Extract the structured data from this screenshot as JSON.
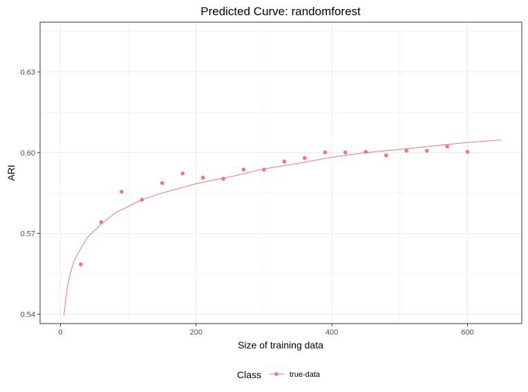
{
  "chart_data": {
    "type": "scatter",
    "title": "Predicted Curve: randomforest",
    "xlabel": "Size of training data",
    "ylabel": "ARI",
    "xlim": [
      -30,
      680
    ],
    "ylim": [
      0.5365,
      0.6485
    ],
    "x_ticks": [
      0,
      200,
      400,
      600
    ],
    "x_tick_labels": [
      "0",
      "200",
      "400",
      "600"
    ],
    "y_ticks": [
      0.54,
      0.57,
      0.6,
      0.63
    ],
    "y_tick_labels": [
      "0.54",
      "0.57",
      "0.60",
      "0.63"
    ],
    "grid": true,
    "legend": {
      "title": "Class",
      "position": "bottom",
      "entries": [
        "true-data"
      ]
    },
    "series": [
      {
        "name": "true-data",
        "color": "#F8766D",
        "points": [
          {
            "x": 30,
            "y": 0.5585
          },
          {
            "x": 60,
            "y": 0.5742
          },
          {
            "x": 90,
            "y": 0.5855
          },
          {
            "x": 120,
            "y": 0.5825
          },
          {
            "x": 150,
            "y": 0.5887
          },
          {
            "x": 180,
            "y": 0.5923
          },
          {
            "x": 210,
            "y": 0.5907
          },
          {
            "x": 240,
            "y": 0.5903
          },
          {
            "x": 270,
            "y": 0.5937
          },
          {
            "x": 300,
            "y": 0.5937
          },
          {
            "x": 330,
            "y": 0.5967
          },
          {
            "x": 360,
            "y": 0.598
          },
          {
            "x": 390,
            "y": 0.6001
          },
          {
            "x": 420,
            "y": 0.6001
          },
          {
            "x": 450,
            "y": 0.6003
          },
          {
            "x": 480,
            "y": 0.599
          },
          {
            "x": 510,
            "y": 0.6007
          },
          {
            "x": 540,
            "y": 0.6007
          },
          {
            "x": 570,
            "y": 0.6023
          },
          {
            "x": 600,
            "y": 0.6003
          }
        ],
        "fitted_curve": [
          [
            5,
            0.5395
          ],
          [
            10,
            0.55
          ],
          [
            15,
            0.5555
          ],
          [
            20,
            0.5598
          ],
          [
            30,
            0.5645
          ],
          [
            40,
            0.5685
          ],
          [
            60,
            0.5735
          ],
          [
            80,
            0.5775
          ],
          [
            100,
            0.58
          ],
          [
            120,
            0.5825
          ],
          [
            150,
            0.585
          ],
          [
            200,
            0.5885
          ],
          [
            250,
            0.591
          ],
          [
            300,
            0.594
          ],
          [
            350,
            0.596
          ],
          [
            400,
            0.5983
          ],
          [
            450,
            0.6
          ],
          [
            500,
            0.6012
          ],
          [
            550,
            0.6025
          ],
          [
            600,
            0.6038
          ],
          [
            650,
            0.6047
          ]
        ]
      }
    ]
  }
}
